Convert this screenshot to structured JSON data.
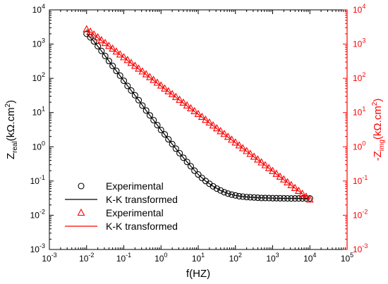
{
  "chart_data": {
    "type": "scatter",
    "xlabel": "f(HZ)",
    "ylabel_left": {
      "main": "Z",
      "sub": "real",
      "unit": "(kΩ.cm",
      "sup": "2",
      "close": ")"
    },
    "ylabel_right": {
      "main": "-Z",
      "sub": "img",
      "unit": "(kΩ.cm",
      "sup": "2",
      "close": ")"
    },
    "x_scale": "log",
    "y_scale": "log",
    "xlim": [
      0.001,
      100000
    ],
    "ylim_left": [
      0.001,
      10000
    ],
    "ylim_right": [
      0.001,
      10000
    ],
    "x_tick_exponents": [
      -3,
      -2,
      -1,
      0,
      1,
      2,
      3,
      4,
      5
    ],
    "y_tick_exponents": [
      -3,
      -2,
      -1,
      0,
      1,
      2,
      3,
      4
    ],
    "tick_base": "10",
    "colors": {
      "left": "#000000",
      "right": "#ff0000"
    },
    "legend_position": "bottom-left",
    "series": [
      {
        "name": "Experimental",
        "axis": "left",
        "marker": "circle",
        "color": "#000000",
        "x": [
          0.01,
          0.0126,
          0.0158,
          0.02,
          0.0251,
          0.0316,
          0.0398,
          0.0501,
          0.0631,
          0.0794,
          0.1,
          0.126,
          0.158,
          0.2,
          0.251,
          0.316,
          0.398,
          0.501,
          0.631,
          0.794,
          1,
          1.26,
          1.58,
          2,
          2.51,
          3.16,
          3.98,
          5.01,
          6.31,
          7.94,
          10,
          12.6,
          15.8,
          20,
          25.1,
          31.6,
          39.8,
          50.1,
          63.1,
          79.4,
          100,
          126,
          158,
          200,
          251,
          316,
          398,
          501,
          631,
          794,
          1000,
          1260,
          1580,
          2000,
          2510,
          3160,
          3980,
          5010,
          6310,
          7940,
          10000
        ],
        "y": [
          2000,
          1580,
          1200,
          870,
          630,
          450,
          320,
          230,
          165,
          120,
          85,
          60,
          44,
          32,
          23,
          16,
          11.5,
          8.3,
          6.0,
          4.3,
          3.1,
          2.3,
          1.65,
          1.2,
          0.88,
          0.65,
          0.48,
          0.36,
          0.27,
          0.2,
          0.155,
          0.123,
          0.1,
          0.083,
          0.07,
          0.06,
          0.053,
          0.047,
          0.043,
          0.04,
          0.038,
          0.036,
          0.035,
          0.034,
          0.0335,
          0.033,
          0.0325,
          0.032,
          0.032,
          0.0318,
          0.0315,
          0.0315,
          0.0313,
          0.0312,
          0.0311,
          0.031,
          0.031,
          0.031,
          0.031,
          0.031,
          0.031
        ]
      },
      {
        "name": "K-K transformed",
        "axis": "left",
        "marker": "line",
        "color": "#000000",
        "x": [
          0.01,
          0.0158,
          0.0251,
          0.0398,
          0.0631,
          0.1,
          0.158,
          0.251,
          0.398,
          0.631,
          1,
          1.58,
          2.51,
          3.98,
          6.31,
          10,
          15.8,
          25.1,
          39.8,
          63.1,
          100,
          158,
          251,
          398,
          631,
          1000,
          1580,
          2510,
          3980,
          6310,
          10000
        ],
        "y": [
          2000,
          1200,
          630,
          320,
          165,
          85,
          44,
          23,
          11.5,
          6.0,
          3.1,
          1.65,
          0.88,
          0.48,
          0.27,
          0.155,
          0.1,
          0.07,
          0.053,
          0.043,
          0.038,
          0.035,
          0.0335,
          0.0325,
          0.032,
          0.0315,
          0.0313,
          0.0311,
          0.031,
          0.031,
          0.031
        ]
      },
      {
        "name": "Experimental",
        "axis": "right",
        "marker": "triangle",
        "color": "#ff0000",
        "x": [
          0.01,
          0.0126,
          0.0158,
          0.02,
          0.0251,
          0.0316,
          0.0398,
          0.0501,
          0.0631,
          0.0794,
          0.1,
          0.126,
          0.158,
          0.2,
          0.251,
          0.316,
          0.398,
          0.501,
          0.631,
          0.794,
          1,
          1.26,
          1.58,
          2,
          2.51,
          3.16,
          3.98,
          5.01,
          6.31,
          7.94,
          10,
          12.6,
          15.8,
          20,
          25.1,
          31.6,
          39.8,
          50.1,
          63.1,
          79.4,
          100,
          126,
          158,
          200,
          251,
          316,
          398,
          501,
          631,
          794,
          1000,
          1260,
          1580,
          2000,
          2510,
          3160,
          3980,
          5010,
          6310,
          7940,
          10000
        ],
        "y": [
          2700,
          2290,
          1890,
          1560,
          1290,
          1070,
          880,
          730,
          600,
          495,
          410,
          340,
          280,
          230,
          190,
          158,
          130,
          108,
          89,
          74,
          61,
          50,
          41.5,
          34.3,
          28.3,
          23.4,
          19.3,
          16,
          13.2,
          10.9,
          9,
          7.4,
          6.1,
          5.05,
          4.17,
          3.44,
          2.84,
          2.35,
          1.94,
          1.6,
          1.32,
          1.09,
          0.9,
          0.745,
          0.615,
          0.508,
          0.42,
          0.347,
          0.287,
          0.237,
          0.195,
          0.161,
          0.133,
          0.11,
          0.091,
          0.075,
          0.062,
          0.051,
          0.042,
          0.0345,
          0.0285
        ]
      },
      {
        "name": "K-K transformed",
        "axis": "right",
        "marker": "line",
        "color": "#ff0000",
        "x": [
          0.01,
          10000
        ],
        "y": [
          2700,
          0.0285
        ]
      }
    ]
  }
}
